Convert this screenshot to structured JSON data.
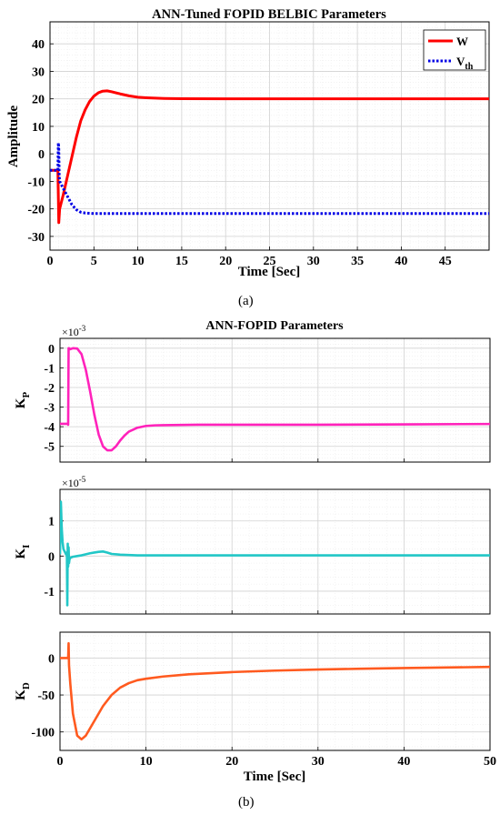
{
  "figure_a": {
    "caption": "(a)",
    "chart_data": {
      "type": "line",
      "title": "ANN-Tuned FOPID BELBIC Parameters",
      "xlabel": "Time [Sec]",
      "ylabel": "Amplitude",
      "xlim": [
        0,
        50
      ],
      "ylim": [
        -35,
        48
      ],
      "xticks": [
        0,
        5,
        10,
        15,
        20,
        25,
        30,
        35,
        40,
        45
      ],
      "yticks": [
        -30,
        -20,
        -10,
        0,
        10,
        20,
        30,
        40
      ],
      "grid": true,
      "legend_position": "top-right",
      "series": [
        {
          "name": "W",
          "legend_main": "W",
          "color": "#ff0000",
          "style": "solid",
          "x": [
            0,
            0.9,
            1.0,
            1.1,
            1.5,
            2,
            2.5,
            3,
            3.5,
            4,
            4.5,
            5,
            5.5,
            6,
            6.5,
            7,
            8,
            9,
            10,
            11,
            12,
            13,
            14,
            15,
            20,
            30,
            40,
            50
          ],
          "y": [
            -6,
            -6,
            -25,
            -20,
            -15,
            -8,
            -1,
            6,
            12,
            16,
            19,
            21,
            22.2,
            22.8,
            22.9,
            22.6,
            21.8,
            21.1,
            20.6,
            20.4,
            20.25,
            20.15,
            20.1,
            20.05,
            20,
            20,
            20,
            20
          ]
        },
        {
          "name": "Vth",
          "legend_main": "V",
          "legend_sub": "th",
          "color": "#0000e6",
          "style": "dotted",
          "x": [
            0,
            0.9,
            0.95,
            1.0,
            1.05,
            1.1,
            1.5,
            2,
            2.5,
            3,
            3.5,
            4,
            5,
            6,
            8,
            10,
            20,
            30,
            40,
            50
          ],
          "y": [
            -6,
            -6,
            4,
            2,
            -8,
            -10,
            -12.5,
            -15.5,
            -18.5,
            -20.3,
            -21.2,
            -21.5,
            -21.7,
            -21.7,
            -21.7,
            -21.7,
            -21.7,
            -21.7,
            -21.7,
            -21.7
          ]
        }
      ]
    }
  },
  "figure_b": {
    "caption": "(b)",
    "title": "ANN-FOPID Parameters",
    "xlabel": "Time [Sec]",
    "xlim": [
      0,
      50
    ],
    "xticks": [
      0,
      10,
      20,
      30,
      40,
      50
    ],
    "grid": true,
    "chart_data": [
      {
        "type": "line",
        "ylabel_main": "K",
        "ylabel_sub": "P",
        "exponent_base": "×10",
        "exponent_power": "-3",
        "ylim": [
          -5.8,
          0.5
        ],
        "yticks": [
          0,
          -1,
          -2,
          -3,
          -4,
          -5
        ],
        "color": "#ff22bb",
        "x": [
          0,
          0.9,
          0.95,
          1.0,
          1.05,
          1.2,
          1.5,
          2,
          2.5,
          3,
          3.5,
          4,
          4.5,
          5,
          5.5,
          6,
          6.5,
          7,
          7.5,
          8,
          9,
          10,
          11,
          12,
          14,
          16,
          20,
          30,
          40,
          50
        ],
        "y": [
          -3.85,
          -3.85,
          -3.9,
          0,
          0,
          -0.05,
          0,
          -0.02,
          -0.3,
          -1.1,
          -2.2,
          -3.4,
          -4.4,
          -5.0,
          -5.2,
          -5.2,
          -5.0,
          -4.7,
          -4.45,
          -4.25,
          -4.05,
          -3.96,
          -3.93,
          -3.92,
          -3.91,
          -3.9,
          -3.9,
          -3.9,
          -3.88,
          -3.86
        ]
      },
      {
        "type": "line",
        "ylabel_main": "K",
        "ylabel_sub": "I",
        "exponent_base": "×10",
        "exponent_power": "-5",
        "ylim": [
          -1.65,
          1.9
        ],
        "yticks": [
          1,
          0,
          -1
        ],
        "color": "#22c7c7",
        "x": [
          0,
          0.1,
          0.2,
          0.3,
          0.4,
          0.5,
          0.6,
          0.7,
          0.8,
          0.85,
          0.9,
          0.95,
          1.0,
          1.05,
          1.1,
          1.2,
          1.5,
          2,
          2.5,
          3,
          3.5,
          4,
          4.5,
          5,
          5.5,
          6,
          7,
          8,
          9,
          10,
          20,
          30,
          40,
          50
        ],
        "y": [
          0.05,
          1.55,
          0.8,
          0.4,
          0.2,
          0.15,
          0.1,
          0.05,
          0.1,
          -1.4,
          0.35,
          -0.3,
          0.25,
          -0.2,
          -0.1,
          -0.05,
          -0.02,
          0,
          0.02,
          0.05,
          0.08,
          0.1,
          0.12,
          0.13,
          0.1,
          0.06,
          0.04,
          0.03,
          0.02,
          0.02,
          0.02,
          0.02,
          0.02,
          0.02
        ]
      },
      {
        "type": "line",
        "ylabel_main": "K",
        "ylabel_sub": "D",
        "ylim": [
          -125,
          35
        ],
        "yticks": [
          0,
          -50,
          -100
        ],
        "color": "#ff5a1f",
        "x": [
          0,
          0.9,
          0.95,
          1.0,
          1.05,
          1.2,
          1.5,
          2,
          2.5,
          3,
          3.5,
          4,
          5,
          6,
          7,
          8,
          9,
          10,
          12,
          15,
          20,
          25,
          30,
          35,
          40,
          45,
          50
        ],
        "y": [
          0,
          0,
          0,
          20,
          -10,
          -35,
          -75,
          -105,
          -110,
          -105,
          -95,
          -85,
          -65,
          -50,
          -40,
          -34,
          -30,
          -28,
          -25,
          -22,
          -19,
          -17,
          -15.5,
          -14.5,
          -13.5,
          -12.8,
          -12
        ]
      }
    ]
  }
}
